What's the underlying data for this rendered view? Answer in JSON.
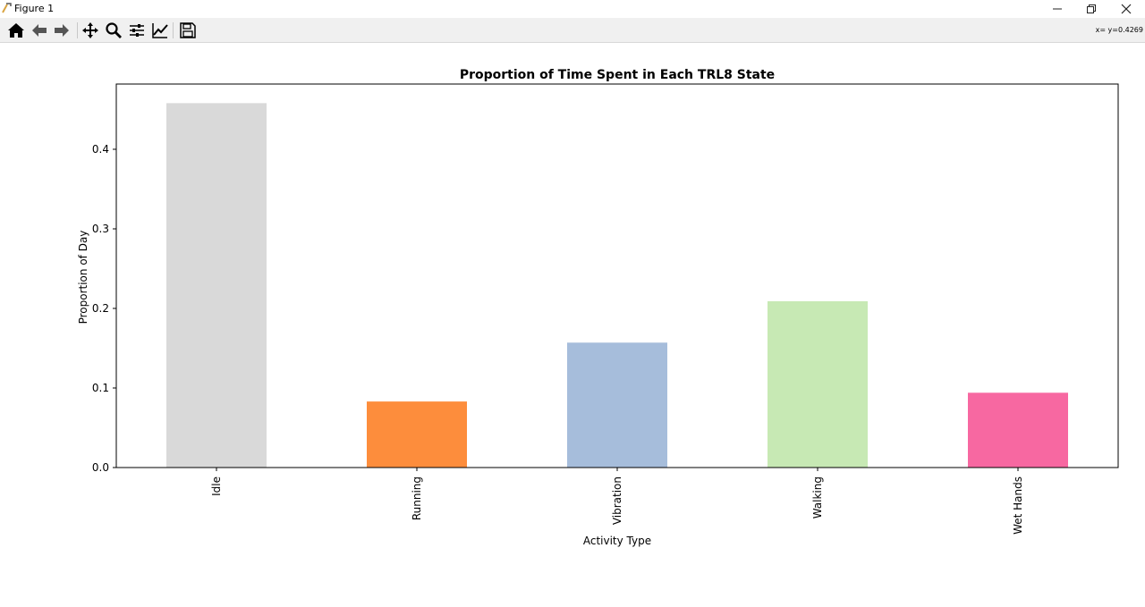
{
  "window": {
    "title": "Figure 1",
    "controls": [
      "minimize",
      "restore",
      "close"
    ]
  },
  "toolbar": {
    "buttons": [
      {
        "name": "home",
        "icon": "home-icon"
      },
      {
        "name": "back",
        "icon": "arrow-left-icon"
      },
      {
        "name": "forward",
        "icon": "arrow-right-icon"
      },
      {
        "name": "pan",
        "icon": "move-icon"
      },
      {
        "name": "zoom",
        "icon": "magnifier-icon"
      },
      {
        "name": "configure-subplots",
        "icon": "sliders-icon"
      },
      {
        "name": "edit-axis",
        "icon": "line-chart-icon"
      },
      {
        "name": "save",
        "icon": "floppy-disk-icon"
      }
    ],
    "coords": "x= y=0.4269"
  },
  "chart_data": {
    "type": "bar",
    "title": "Proportion of Time Spent in Each TRL8 State",
    "xlabel": "Activity Type",
    "ylabel": "Proportion of Day",
    "categories": [
      "Idle",
      "Running",
      "Vibration",
      "Walking",
      "Wet Hands"
    ],
    "values": [
      0.458,
      0.083,
      0.157,
      0.209,
      0.094
    ],
    "colors": [
      "#d9d9d9",
      "#fd8d3c",
      "#a6bddb",
      "#c7e9b4",
      "#f768a1"
    ],
    "ylim": [
      0,
      0.482
    ],
    "yticks": [
      0.0,
      0.1,
      0.2,
      0.3,
      0.4
    ],
    "ytick_labels": [
      "0.0",
      "0.1",
      "0.2",
      "0.3",
      "0.4"
    ],
    "grid": false,
    "xtick_rotation": "vertical"
  }
}
